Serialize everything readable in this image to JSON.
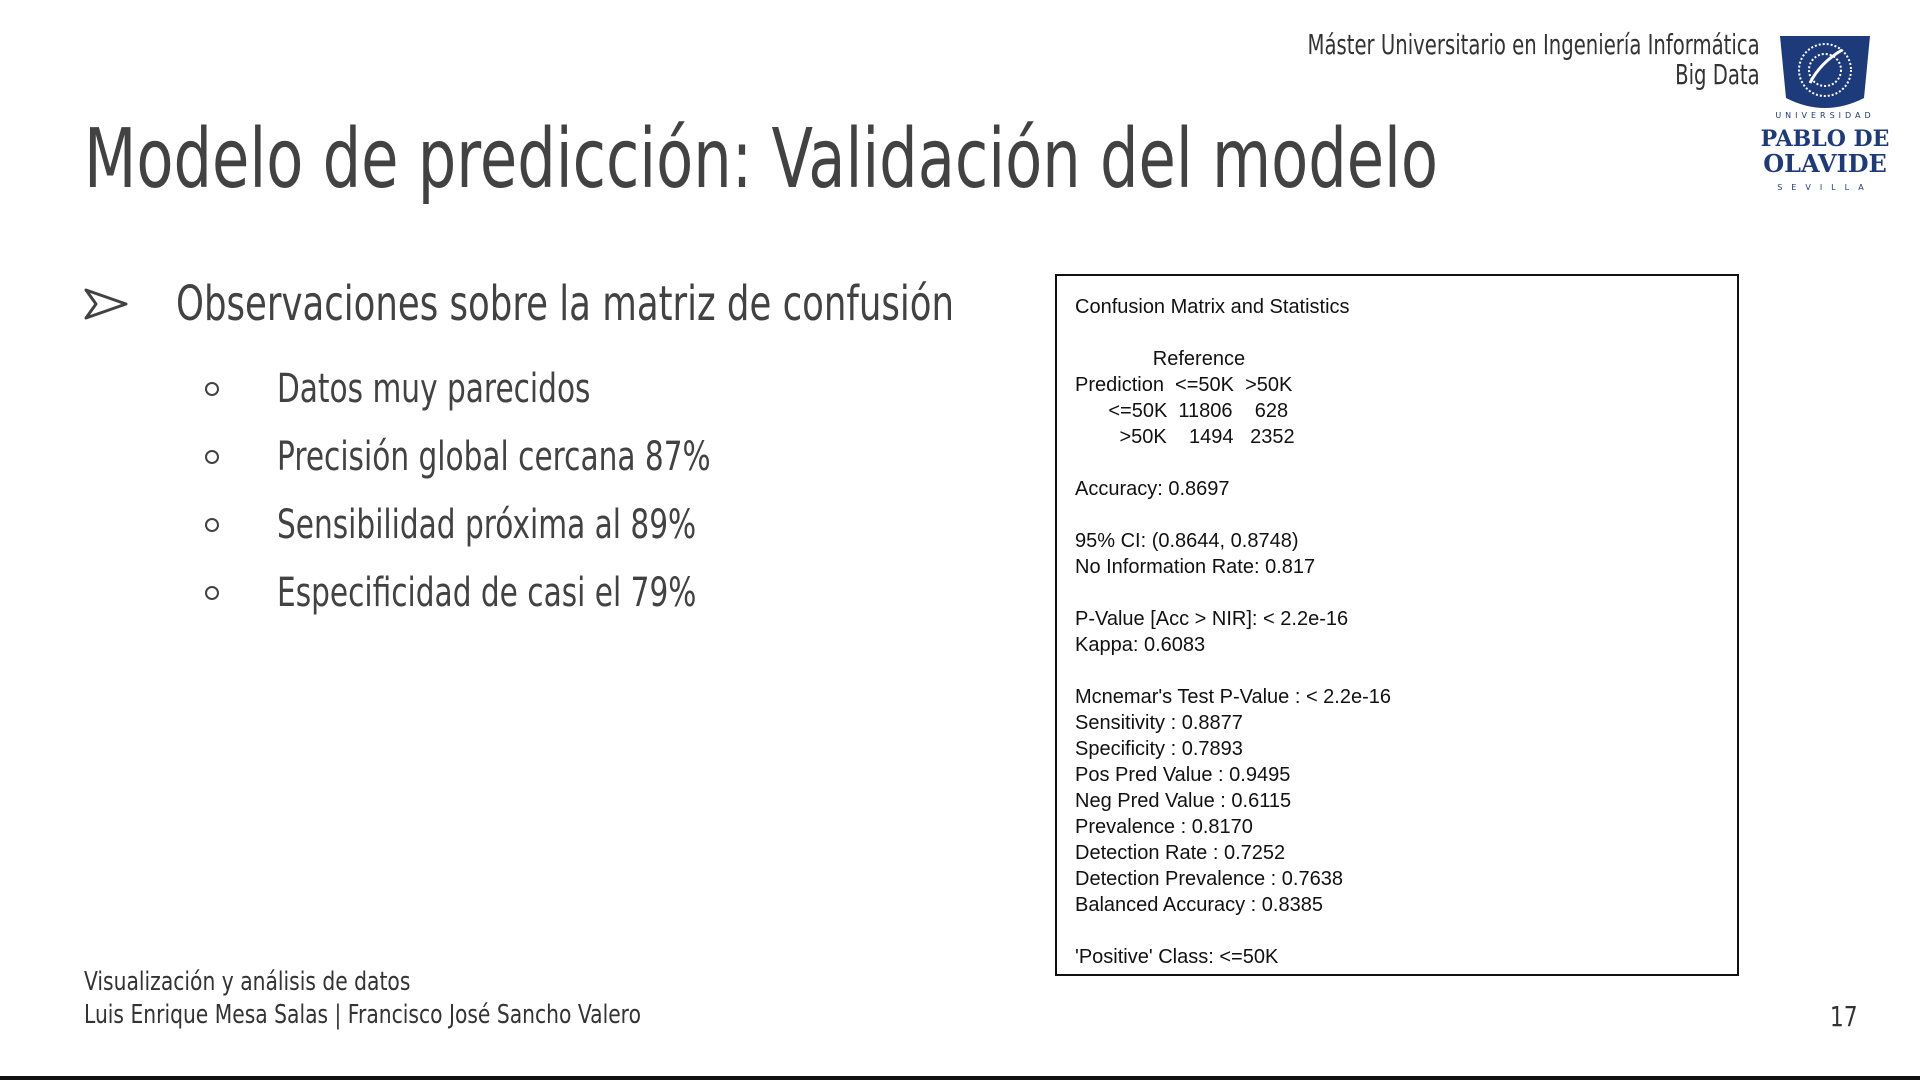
{
  "header": {
    "program_line1": "Máster Universitario en Ingeniería Informática",
    "program_line2": "Big Data"
  },
  "logo": {
    "arc_text": "UNIVERSIDAD",
    "name_line1": "PABLO DE",
    "name_line2": "OLAVIDE",
    "city": "SEVILLA",
    "color": "#1d3a7a"
  },
  "slide": {
    "title": "Modelo de predicción: Validación del modelo",
    "main_bullet": "Observaciones sobre la matriz de confusión",
    "sub_bullets": [
      "Datos muy parecidos",
      "Precisión global cercana 87%",
      "Sensibilidad próxima al 89%",
      "Especificidad de casi el 79%"
    ]
  },
  "stats": {
    "heading": "Confusion Matrix and Statistics",
    "matrix_header": "              Reference",
    "matrix_cols": "Prediction  <=50K  >50K",
    "matrix_row1": "      <=50K  11806    628",
    "matrix_row2": "        >50K    1494   2352",
    "accuracy": "Accuracy: 0.8697",
    "ci": "95% CI: (0.8644, 0.8748)",
    "nir": "No Information Rate: 0.817",
    "pvalue": "P-Value [Acc > NIR]: < 2.2e-16",
    "kappa": "Kappa: 0.6083",
    "mcnemar": "Mcnemar's Test P-Value : < 2.2e-16",
    "sensitivity": "Sensitivity : 0.8877",
    "specificity": "Specificity : 0.7893",
    "pos_pred": "Pos Pred Value : 0.9495",
    "neg_pred": "Neg Pred Value : 0.6115",
    "prevalence": "Prevalence : 0.8170",
    "detection_rate": "Detection Rate : 0.7252",
    "detection_prevalence": "Detection Prevalence : 0.7638",
    "balanced_accuracy": "Balanced Accuracy : 0.8385",
    "positive_class": "'Positive' Class: <=50K"
  },
  "footer": {
    "line1": "Visualización y análisis de datos",
    "line2": "Luis Enrique Mesa Salas | Francisco José Sancho Valero"
  },
  "page_number": "17"
}
